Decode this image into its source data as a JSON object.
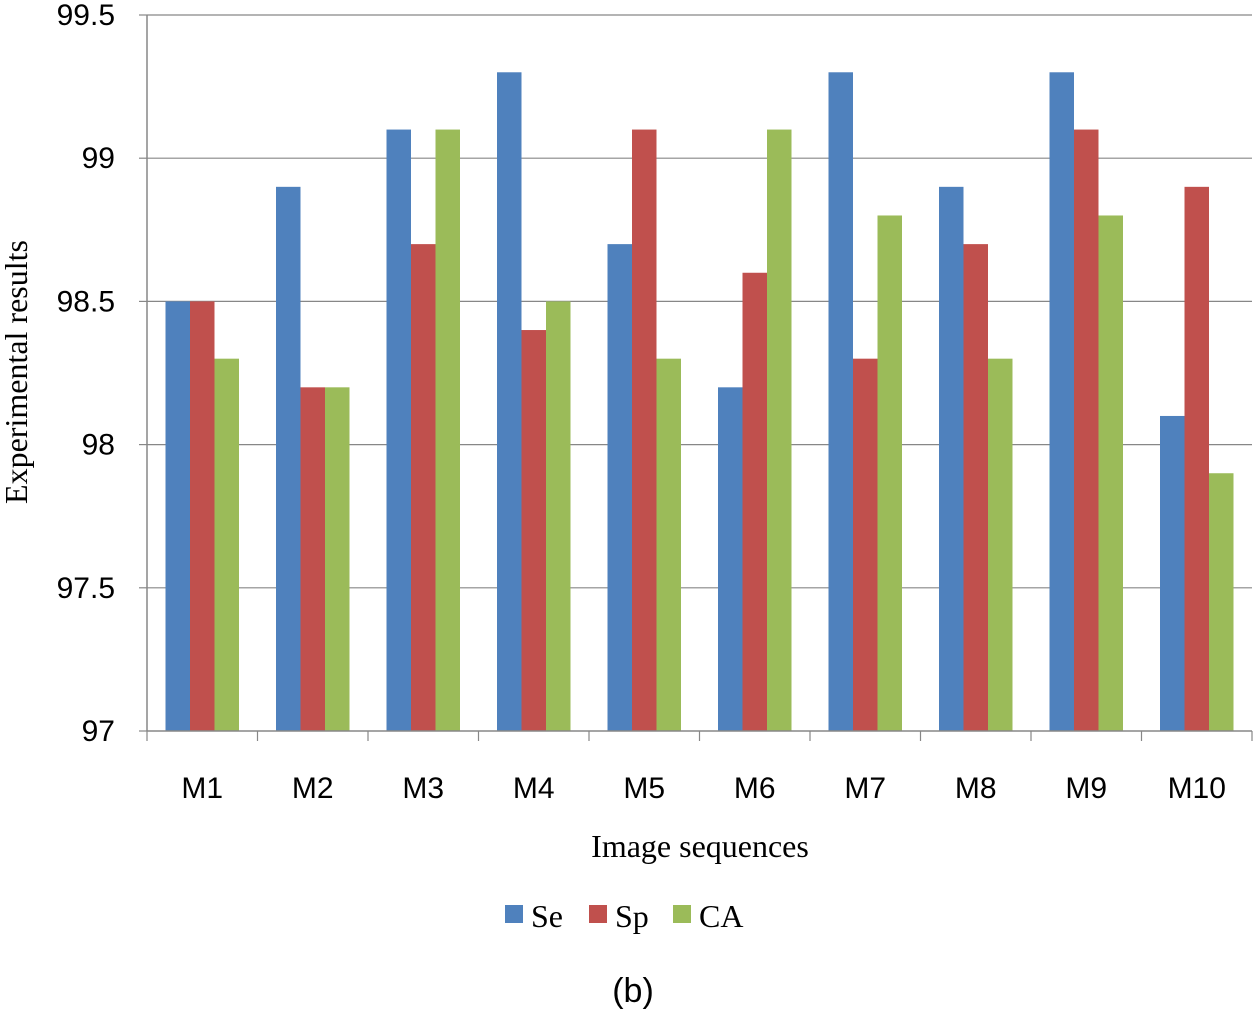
{
  "chart_data": {
    "type": "bar",
    "title": "",
    "caption": "(b)",
    "xlabel": "Image sequences",
    "ylabel": "Experimental results",
    "ylim": [
      97,
      99.5
    ],
    "yticks": [
      97,
      97.5,
      98,
      98.5,
      99,
      99.5
    ],
    "ytick_labels": [
      "97",
      "97.5",
      "98",
      "98.5",
      "99",
      "99.5"
    ],
    "grid": true,
    "legend_position": "bottom",
    "categories": [
      "M1",
      "M2",
      "M3",
      "M4",
      "M5",
      "M6",
      "M7",
      "M8",
      "M9",
      "M10"
    ],
    "series": [
      {
        "name": "Se",
        "color": "#4F81BD",
        "values": [
          98.5,
          98.9,
          99.1,
          99.3,
          98.7,
          98.2,
          99.3,
          98.9,
          99.3,
          98.1
        ]
      },
      {
        "name": "Sp",
        "color": "#C0504D",
        "values": [
          98.5,
          98.2,
          98.7,
          98.4,
          99.1,
          98.6,
          98.3,
          98.7,
          99.1,
          98.9
        ]
      },
      {
        "name": "CA",
        "color": "#9BBB59",
        "values": [
          98.3,
          98.2,
          99.1,
          98.5,
          98.3,
          99.1,
          98.8,
          98.3,
          98.8,
          97.9
        ]
      }
    ]
  }
}
